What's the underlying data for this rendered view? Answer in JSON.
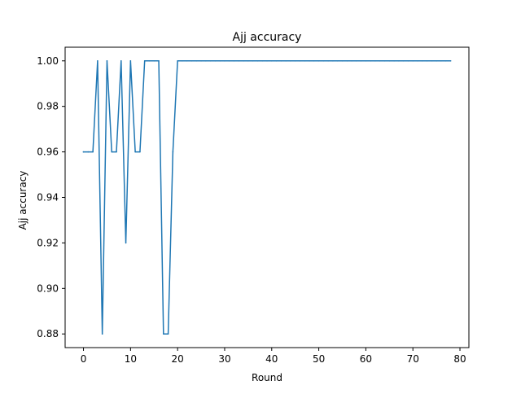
{
  "chart_data": {
    "type": "line",
    "title": "Ajj accuracy",
    "xlabel": "Round",
    "ylabel": "Ajj accuracy",
    "xlim": [
      -3.9,
      81.9
    ],
    "ylim": [
      0.874,
      1.006
    ],
    "xticks": [
      0,
      10,
      20,
      30,
      40,
      50,
      60,
      70,
      80
    ],
    "yticks": [
      0.88,
      0.9,
      0.92,
      0.94,
      0.96,
      0.98,
      1.0
    ],
    "xtick_labels": [
      "0",
      "10",
      "20",
      "30",
      "40",
      "50",
      "60",
      "70",
      "80"
    ],
    "ytick_labels": [
      "0.88",
      "0.90",
      "0.92",
      "0.94",
      "0.96",
      "0.98",
      "1.00"
    ],
    "grid": false,
    "line_color": "#1f77b4",
    "series": [
      {
        "x": [
          0,
          1,
          2,
          3,
          4,
          5,
          6,
          7,
          8,
          9,
          10,
          11,
          12,
          13,
          14,
          15,
          16,
          17,
          18,
          19,
          20,
          21,
          22,
          23,
          24,
          25,
          26,
          27,
          28,
          29,
          30,
          31,
          32,
          33,
          34,
          35,
          36,
          37,
          38,
          39,
          40,
          41,
          42,
          43,
          44,
          45,
          46,
          47,
          48,
          49,
          50,
          51,
          52,
          53,
          54,
          55,
          56,
          57,
          58,
          59,
          60,
          61,
          62,
          63,
          64,
          65,
          66,
          67,
          68,
          69,
          70,
          71,
          72,
          73,
          74,
          75,
          76,
          77,
          78
        ],
        "values": [
          0.96,
          0.96,
          0.96,
          1.0,
          0.88,
          1.0,
          0.96,
          0.96,
          1.0,
          0.92,
          1.0,
          0.96,
          0.96,
          1.0,
          1.0,
          1.0,
          1.0,
          0.88,
          0.88,
          0.96,
          1.0,
          1.0,
          1.0,
          1.0,
          1.0,
          1.0,
          1.0,
          1.0,
          1.0,
          1.0,
          1.0,
          1.0,
          1.0,
          1.0,
          1.0,
          1.0,
          1.0,
          1.0,
          1.0,
          1.0,
          1.0,
          1.0,
          1.0,
          1.0,
          1.0,
          1.0,
          1.0,
          1.0,
          1.0,
          1.0,
          1.0,
          1.0,
          1.0,
          1.0,
          1.0,
          1.0,
          1.0,
          1.0,
          1.0,
          1.0,
          1.0,
          1.0,
          1.0,
          1.0,
          1.0,
          1.0,
          1.0,
          1.0,
          1.0,
          1.0,
          1.0,
          1.0,
          1.0,
          1.0,
          1.0,
          1.0,
          1.0,
          1.0,
          1.0
        ]
      }
    ]
  }
}
